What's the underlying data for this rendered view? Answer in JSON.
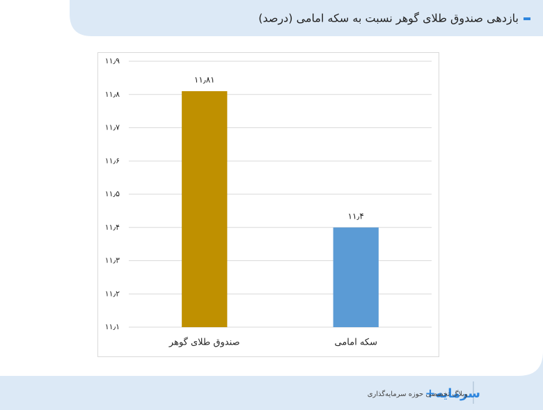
{
  "chart_data": {
    "type": "bar",
    "title": "بازدهی صندوق طلای گوهر نسبت به سکه امامی (درصد)",
    "categories": [
      "صندوق طلای گوهر",
      "سکه امامی"
    ],
    "values": [
      11.81,
      11.4
    ],
    "value_labels": [
      "۱۱٫۸۱",
      "۱۱٫۴"
    ],
    "colors": [
      "#bf9000",
      "#5b9bd5"
    ],
    "ylim": [
      11.1,
      11.9
    ],
    "yticks": [
      {
        "value": 11.1,
        "label": "۱۱٫۱"
      },
      {
        "value": 11.2,
        "label": "۱۱٫۲"
      },
      {
        "value": 11.3,
        "label": "۱۱٫۳"
      },
      {
        "value": 11.4,
        "label": "۱۱٫۴"
      },
      {
        "value": 11.5,
        "label": "۱۱٫۵"
      },
      {
        "value": 11.6,
        "label": "۱۱٫۶"
      },
      {
        "value": 11.7,
        "label": "۱۱٫۷"
      },
      {
        "value": 11.8,
        "label": "۱۱٫۸"
      },
      {
        "value": 11.9,
        "label": "۱۱٫۹"
      }
    ],
    "grid": true
  },
  "footer": {
    "logo": "سرمایه+",
    "tagline": "وبلاگ تخصصی حوزه سرمایه‌گذاری"
  }
}
